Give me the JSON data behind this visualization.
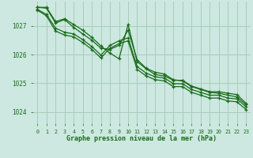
{
  "background_color": "#cce8e0",
  "grid_color": "#aaccbb",
  "line_color": "#1a6b1a",
  "marker_color": "#1a6b1a",
  "xlabel": "Graphe pression niveau de la mer (hPa)",
  "xlabel_color": "#1a6b1a",
  "tick_color": "#1a6b1a",
  "xlim": [
    -0.5,
    23.5
  ],
  "ylim": [
    1023.6,
    1027.85
  ],
  "yticks": [
    1024,
    1025,
    1026,
    1027
  ],
  "xticks": [
    0,
    1,
    2,
    3,
    4,
    5,
    6,
    7,
    8,
    9,
    10,
    11,
    12,
    13,
    14,
    15,
    16,
    17,
    18,
    19,
    20,
    21,
    22,
    23
  ],
  "series": [
    [
      1027.65,
      1027.65,
      1027.15,
      1027.25,
      1027.05,
      1026.85,
      1026.6,
      1026.3,
      1026.05,
      1025.85,
      1027.05,
      1025.75,
      1025.5,
      1025.3,
      1025.25,
      1025.1,
      1025.1,
      1024.9,
      1024.8,
      1024.7,
      1024.7,
      1024.65,
      1024.6,
      1024.3
    ],
    [
      1027.65,
      1027.62,
      1027.1,
      1027.22,
      1026.95,
      1026.72,
      1026.5,
      1026.22,
      1026.18,
      1026.32,
      1026.85,
      1025.82,
      1025.52,
      1025.38,
      1025.32,
      1025.12,
      1025.08,
      1024.88,
      1024.78,
      1024.68,
      1024.65,
      1024.58,
      1024.52,
      1024.25
    ],
    [
      1027.58,
      1027.4,
      1026.92,
      1026.78,
      1026.72,
      1026.52,
      1026.28,
      1025.98,
      1026.32,
      1026.48,
      1026.58,
      1025.58,
      1025.35,
      1025.22,
      1025.18,
      1024.98,
      1024.98,
      1024.78,
      1024.68,
      1024.58,
      1024.58,
      1024.48,
      1024.45,
      1024.18
    ],
    [
      1027.55,
      1027.35,
      1026.82,
      1026.68,
      1026.62,
      1026.42,
      1026.18,
      1025.88,
      1026.22,
      1026.38,
      1026.48,
      1025.48,
      1025.25,
      1025.12,
      1025.08,
      1024.88,
      1024.88,
      1024.68,
      1024.58,
      1024.48,
      1024.48,
      1024.38,
      1024.35,
      1024.08
    ]
  ]
}
